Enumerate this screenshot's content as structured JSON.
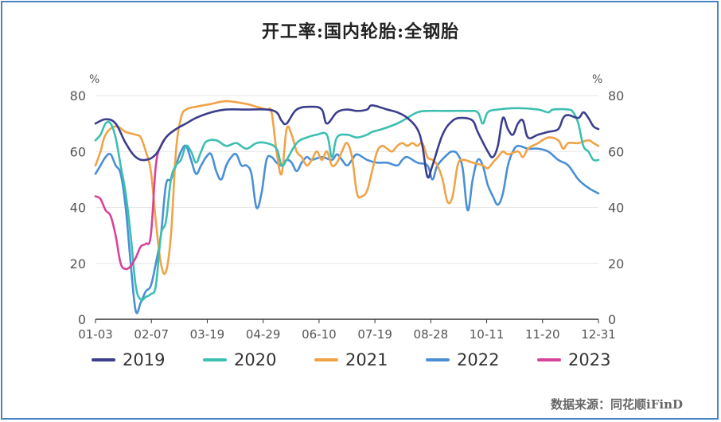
{
  "chart_data": {
    "type": "line",
    "title": "开工率:国内轮胎:全钢胎",
    "ylabel_left": "%",
    "ylabel_right": "%",
    "ylim": [
      0,
      80
    ],
    "yticks": [
      0,
      20,
      40,
      60,
      80
    ],
    "x_tick_labels": [
      "01-03",
      "02-07",
      "03-19",
      "04-29",
      "06-10",
      "07-19",
      "08-28",
      "10-11",
      "11-20",
      "12-31"
    ],
    "grid": true,
    "legend_position": "bottom",
    "series": [
      {
        "name": "2019",
        "color": "#3b3f8c",
        "points": [
          [
            0.0,
            70
          ],
          [
            0.02,
            71.5
          ],
          [
            0.04,
            70
          ],
          [
            0.06,
            63
          ],
          [
            0.08,
            58
          ],
          [
            0.1,
            57
          ],
          [
            0.12,
            59
          ],
          [
            0.14,
            65
          ],
          [
            0.16,
            68
          ],
          [
            0.18,
            70
          ],
          [
            0.2,
            72
          ],
          [
            0.23,
            74
          ],
          [
            0.26,
            75
          ],
          [
            0.3,
            75
          ],
          [
            0.34,
            75
          ],
          [
            0.36,
            74
          ],
          [
            0.37,
            71
          ],
          [
            0.38,
            70
          ],
          [
            0.4,
            75
          ],
          [
            0.43,
            76
          ],
          [
            0.45,
            75
          ],
          [
            0.46,
            70
          ],
          [
            0.48,
            74
          ],
          [
            0.5,
            75
          ],
          [
            0.52,
            74.5
          ],
          [
            0.54,
            75
          ],
          [
            0.55,
            76.5
          ],
          [
            0.58,
            75
          ],
          [
            0.6,
            74
          ],
          [
            0.62,
            72
          ],
          [
            0.64,
            68
          ],
          [
            0.65,
            62
          ],
          [
            0.66,
            51
          ],
          [
            0.67,
            55
          ],
          [
            0.69,
            66
          ],
          [
            0.71,
            71
          ],
          [
            0.73,
            72
          ],
          [
            0.75,
            71
          ],
          [
            0.76,
            67
          ],
          [
            0.78,
            60
          ],
          [
            0.79,
            58
          ],
          [
            0.8,
            62
          ],
          [
            0.81,
            72
          ],
          [
            0.82,
            68
          ],
          [
            0.83,
            66
          ],
          [
            0.84,
            70
          ],
          [
            0.85,
            71
          ],
          [
            0.86,
            65
          ],
          [
            0.88,
            66
          ],
          [
            0.9,
            67
          ],
          [
            0.92,
            68
          ],
          [
            0.93,
            72
          ],
          [
            0.94,
            73
          ],
          [
            0.96,
            72
          ],
          [
            0.97,
            74
          ],
          [
            0.98,
            72
          ],
          [
            0.99,
            69
          ],
          [
            1.0,
            68
          ]
        ]
      },
      {
        "name": "2020",
        "color": "#3dbfb0",
        "points": [
          [
            0.0,
            64
          ],
          [
            0.01,
            66
          ],
          [
            0.02,
            70
          ],
          [
            0.03,
            70
          ],
          [
            0.04,
            65
          ],
          [
            0.05,
            55
          ],
          [
            0.06,
            45
          ],
          [
            0.07,
            30
          ],
          [
            0.08,
            12
          ],
          [
            0.09,
            7
          ],
          [
            0.1,
            8
          ],
          [
            0.11,
            9
          ],
          [
            0.12,
            12
          ],
          [
            0.13,
            30
          ],
          [
            0.14,
            35
          ],
          [
            0.15,
            50
          ],
          [
            0.16,
            55
          ],
          [
            0.17,
            57
          ],
          [
            0.18,
            62
          ],
          [
            0.19,
            60
          ],
          [
            0.2,
            56
          ],
          [
            0.21,
            60
          ],
          [
            0.22,
            63.5
          ],
          [
            0.24,
            64
          ],
          [
            0.26,
            62
          ],
          [
            0.28,
            63
          ],
          [
            0.3,
            61
          ],
          [
            0.32,
            63
          ],
          [
            0.34,
            63
          ],
          [
            0.36,
            61
          ],
          [
            0.37,
            55
          ],
          [
            0.38,
            57
          ],
          [
            0.4,
            63
          ],
          [
            0.42,
            65
          ],
          [
            0.44,
            66
          ],
          [
            0.46,
            66
          ],
          [
            0.47,
            58
          ],
          [
            0.48,
            65
          ],
          [
            0.5,
            66
          ],
          [
            0.52,
            65
          ],
          [
            0.54,
            66
          ],
          [
            0.55,
            67
          ],
          [
            0.57,
            68
          ],
          [
            0.6,
            70
          ],
          [
            0.62,
            72
          ],
          [
            0.64,
            74
          ],
          [
            0.66,
            74.5
          ],
          [
            0.7,
            74.5
          ],
          [
            0.74,
            74.5
          ],
          [
            0.76,
            74
          ],
          [
            0.77,
            70
          ],
          [
            0.78,
            74
          ],
          [
            0.8,
            75
          ],
          [
            0.84,
            75.5
          ],
          [
            0.88,
            75
          ],
          [
            0.9,
            74
          ],
          [
            0.91,
            75
          ],
          [
            0.94,
            75
          ],
          [
            0.95,
            74
          ],
          [
            0.96,
            70
          ],
          [
            0.97,
            62
          ],
          [
            0.98,
            60
          ],
          [
            0.99,
            57
          ],
          [
            1.0,
            57
          ]
        ]
      },
      {
        "name": "2021",
        "color": "#f0a347",
        "points": [
          [
            0.0,
            55
          ],
          [
            0.01,
            60
          ],
          [
            0.02,
            66
          ],
          [
            0.04,
            69
          ],
          [
            0.06,
            67
          ],
          [
            0.08,
            66
          ],
          [
            0.09,
            65
          ],
          [
            0.1,
            60
          ],
          [
            0.11,
            53
          ],
          [
            0.12,
            35
          ],
          [
            0.13,
            20
          ],
          [
            0.14,
            17
          ],
          [
            0.15,
            30
          ],
          [
            0.16,
            60
          ],
          [
            0.17,
            72
          ],
          [
            0.18,
            75
          ],
          [
            0.2,
            76
          ],
          [
            0.23,
            77
          ],
          [
            0.26,
            78
          ],
          [
            0.3,
            77
          ],
          [
            0.32,
            76
          ],
          [
            0.34,
            75
          ],
          [
            0.35,
            74
          ],
          [
            0.36,
            60
          ],
          [
            0.37,
            52
          ],
          [
            0.38,
            68
          ],
          [
            0.39,
            66
          ],
          [
            0.4,
            60
          ],
          [
            0.41,
            58
          ],
          [
            0.42,
            55
          ],
          [
            0.43,
            57
          ],
          [
            0.44,
            60
          ],
          [
            0.45,
            57
          ],
          [
            0.46,
            60
          ],
          [
            0.47,
            55
          ],
          [
            0.48,
            56
          ],
          [
            0.49,
            60
          ],
          [
            0.5,
            63
          ],
          [
            0.51,
            58
          ],
          [
            0.52,
            45
          ],
          [
            0.53,
            44
          ],
          [
            0.54,
            46
          ],
          [
            0.55,
            53
          ],
          [
            0.56,
            60
          ],
          [
            0.57,
            62
          ],
          [
            0.58,
            61
          ],
          [
            0.59,
            60
          ],
          [
            0.6,
            62
          ],
          [
            0.61,
            63
          ],
          [
            0.62,
            62
          ],
          [
            0.63,
            63
          ],
          [
            0.64,
            62
          ],
          [
            0.65,
            63
          ],
          [
            0.66,
            58
          ],
          [
            0.67,
            57
          ],
          [
            0.68,
            55
          ],
          [
            0.69,
            50
          ],
          [
            0.7,
            42
          ],
          [
            0.71,
            44
          ],
          [
            0.72,
            55
          ],
          [
            0.73,
            57
          ],
          [
            0.75,
            56
          ],
          [
            0.77,
            55
          ],
          [
            0.78,
            54
          ],
          [
            0.79,
            56
          ],
          [
            0.8,
            58
          ],
          [
            0.81,
            60
          ],
          [
            0.82,
            59
          ],
          [
            0.84,
            60
          ],
          [
            0.85,
            58
          ],
          [
            0.86,
            61
          ],
          [
            0.88,
            63
          ],
          [
            0.9,
            65
          ],
          [
            0.92,
            64
          ],
          [
            0.93,
            61
          ],
          [
            0.94,
            63
          ],
          [
            0.96,
            63
          ],
          [
            0.98,
            64
          ],
          [
            0.99,
            63
          ],
          [
            1.0,
            62
          ]
        ]
      },
      {
        "name": "2022",
        "color": "#4a8fd6",
        "points": [
          [
            0.0,
            52
          ],
          [
            0.01,
            55
          ],
          [
            0.02,
            58
          ],
          [
            0.03,
            59
          ],
          [
            0.04,
            55
          ],
          [
            0.05,
            52
          ],
          [
            0.06,
            40
          ],
          [
            0.07,
            20
          ],
          [
            0.08,
            3
          ],
          [
            0.09,
            6
          ],
          [
            0.1,
            10
          ],
          [
            0.11,
            12
          ],
          [
            0.12,
            20
          ],
          [
            0.13,
            30
          ],
          [
            0.14,
            48
          ],
          [
            0.15,
            50
          ],
          [
            0.16,
            55
          ],
          [
            0.17,
            60
          ],
          [
            0.18,
            62
          ],
          [
            0.19,
            57
          ],
          [
            0.2,
            52
          ],
          [
            0.21,
            55
          ],
          [
            0.22,
            58
          ],
          [
            0.23,
            59
          ],
          [
            0.24,
            53
          ],
          [
            0.25,
            50
          ],
          [
            0.26,
            55
          ],
          [
            0.27,
            58
          ],
          [
            0.28,
            59
          ],
          [
            0.29,
            55
          ],
          [
            0.3,
            55
          ],
          [
            0.31,
            52
          ],
          [
            0.32,
            40
          ],
          [
            0.33,
            45
          ],
          [
            0.34,
            57
          ],
          [
            0.35,
            58
          ],
          [
            0.36,
            56
          ],
          [
            0.37,
            55
          ],
          [
            0.38,
            57
          ],
          [
            0.39,
            56
          ],
          [
            0.4,
            53
          ],
          [
            0.41,
            56
          ],
          [
            0.42,
            58
          ],
          [
            0.43,
            57
          ],
          [
            0.45,
            58
          ],
          [
            0.47,
            57
          ],
          [
            0.48,
            59
          ],
          [
            0.49,
            57
          ],
          [
            0.5,
            55
          ],
          [
            0.51,
            57
          ],
          [
            0.52,
            59
          ],
          [
            0.54,
            57
          ],
          [
            0.56,
            56
          ],
          [
            0.58,
            56
          ],
          [
            0.6,
            55
          ],
          [
            0.61,
            57
          ],
          [
            0.62,
            58
          ],
          [
            0.64,
            56
          ],
          [
            0.66,
            55
          ],
          [
            0.67,
            50
          ],
          [
            0.68,
            55
          ],
          [
            0.7,
            59
          ],
          [
            0.71,
            60
          ],
          [
            0.72,
            59
          ],
          [
            0.73,
            54
          ],
          [
            0.74,
            39
          ],
          [
            0.75,
            50
          ],
          [
            0.76,
            57
          ],
          [
            0.77,
            55
          ],
          [
            0.78,
            48
          ],
          [
            0.79,
            44
          ],
          [
            0.8,
            41
          ],
          [
            0.81,
            45
          ],
          [
            0.82,
            55
          ],
          [
            0.83,
            60
          ],
          [
            0.84,
            62
          ],
          [
            0.86,
            61
          ],
          [
            0.88,
            61
          ],
          [
            0.9,
            60
          ],
          [
            0.92,
            57
          ],
          [
            0.94,
            55
          ],
          [
            0.96,
            50
          ],
          [
            0.98,
            47
          ],
          [
            1.0,
            45
          ]
        ]
      },
      {
        "name": "2023",
        "color": "#d8439a",
        "points": [
          [
            0.0,
            44
          ],
          [
            0.01,
            43
          ],
          [
            0.02,
            39
          ],
          [
            0.03,
            37
          ],
          [
            0.04,
            30
          ],
          [
            0.05,
            20
          ],
          [
            0.06,
            18
          ],
          [
            0.07,
            19
          ],
          [
            0.08,
            22
          ],
          [
            0.09,
            26
          ],
          [
            0.1,
            27
          ],
          [
            0.11,
            30
          ],
          [
            0.12,
            55
          ],
          [
            0.13,
            62
          ],
          [
            0.14,
            65
          ]
        ]
      }
    ],
    "source": "数据来源：同花顺iFinD"
  }
}
